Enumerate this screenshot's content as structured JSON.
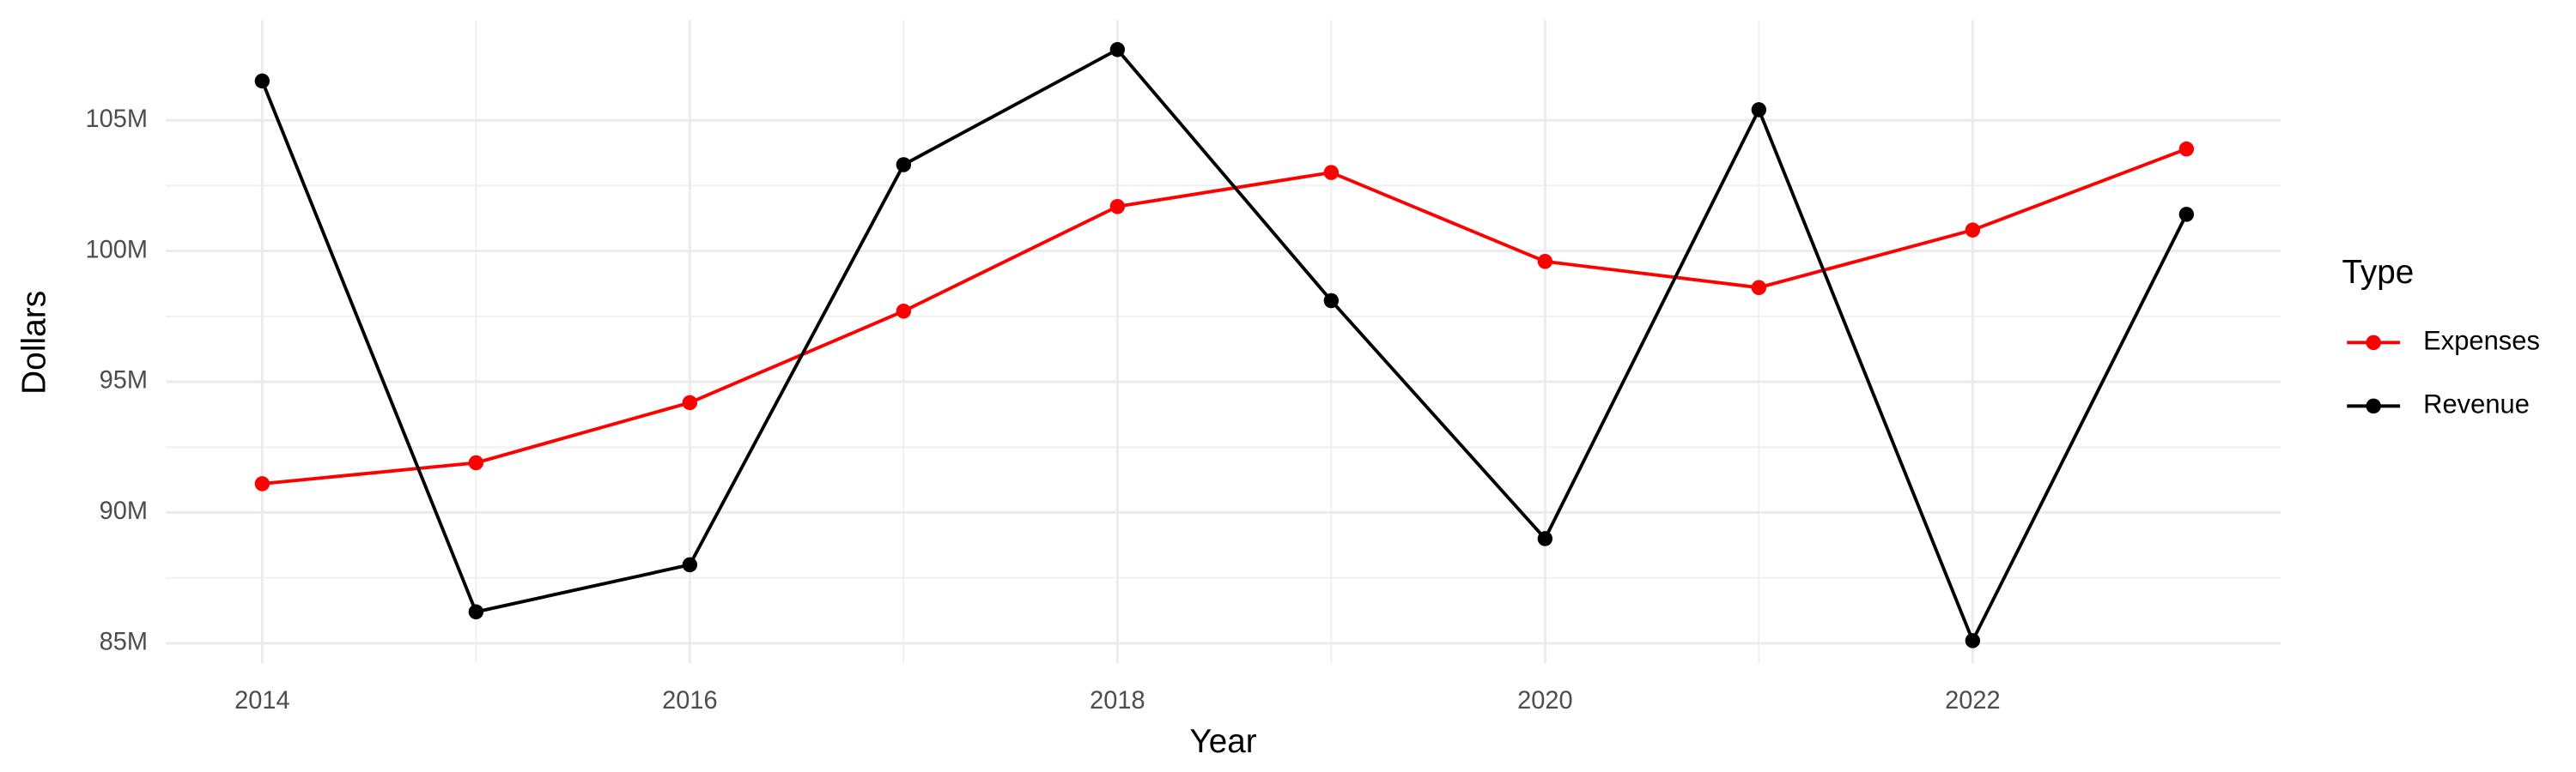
{
  "chart_data": {
    "type": "line",
    "x_label": "Year",
    "y_label": "Dollars",
    "legend_title": "Type",
    "x": [
      2014,
      2015,
      2016,
      2017,
      2018,
      2019,
      2020,
      2021,
      2022,
      2023
    ],
    "series": [
      {
        "name": "Expenses",
        "color": "#ff0000",
        "values": [
          91100000,
          91900000,
          94200000,
          97700000,
          101700000,
          103000000,
          99600000,
          98600000,
          100800000,
          103900000
        ]
      },
      {
        "name": "Revenue",
        "color": "#000000",
        "values": [
          106500000,
          86200000,
          88000000,
          103300000,
          107700000,
          98100000,
          89000000,
          105400000,
          85100000,
          101400000
        ]
      }
    ],
    "xlim": [
      2013.55,
      2023.44
    ],
    "ylim": [
      84230000,
      108830000
    ],
    "xticks": [
      2014,
      2016,
      2018,
      2020,
      2022
    ],
    "yticks": [
      {
        "value": 85000000,
        "label": "85M"
      },
      {
        "value": 90000000,
        "label": "90M"
      },
      {
        "value": 95000000,
        "label": "95M"
      },
      {
        "value": 100000000,
        "label": "100M"
      },
      {
        "value": 105000000,
        "label": "105M"
      }
    ],
    "grid": true,
    "legend": "right"
  }
}
